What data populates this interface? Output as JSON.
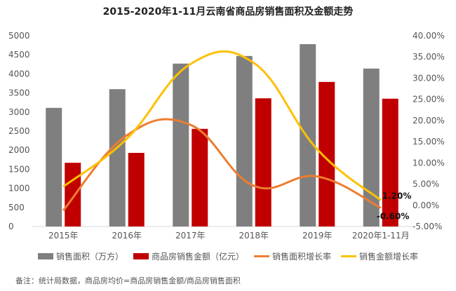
{
  "chart_data": {
    "type": "bar",
    "title": "2015-2020年1-11月云南省商品房销售面积及金额走势",
    "categories": [
      "2015年",
      "2016年",
      "2017年",
      "2018年",
      "2019年",
      "2020年1-11月"
    ],
    "series": [
      {
        "name": "销售面积（万方）",
        "kind": "bar",
        "axis": "left",
        "color": "#7f7f7f",
        "values": [
          3110,
          3600,
          4270,
          4470,
          4780,
          4140
        ]
      },
      {
        "name": "商品房销售金额（亿元）",
        "kind": "bar",
        "axis": "left",
        "color": "#c00000",
        "values": [
          1670,
          1930,
          2560,
          3360,
          3790,
          3350
        ]
      },
      {
        "name": "销售面积增长率",
        "kind": "line",
        "axis": "right",
        "color": "#ed7d31",
        "values": [
          -1.2,
          16.5,
          19.0,
          4.6,
          6.8,
          -0.6
        ]
      },
      {
        "name": "销售金额增长率",
        "kind": "line",
        "axis": "right",
        "color": "#ffc000",
        "values": [
          4.4,
          15.7,
          33.3,
          33.6,
          13.2,
          1.2
        ]
      }
    ],
    "ylim_left": [
      0,
      5000
    ],
    "yticks_left": [
      "0",
      "500",
      "1000",
      "1500",
      "2000",
      "2500",
      "3000",
      "3500",
      "4000",
      "4500",
      "5000"
    ],
    "ylim_right": [
      -5,
      40
    ],
    "yticks_right": [
      "-5.00%",
      "0.00%",
      "5.00%",
      "10.00%",
      "15.00%",
      "20.00%",
      "25.00%",
      "30.00%",
      "35.00%",
      "40.00%"
    ],
    "data_labels": [
      "1.20%",
      "-0.60%"
    ],
    "grid": false,
    "legend": "bottom"
  },
  "note": "备注：统计局数据，商品房均价=商品房销售金额/商品房销售面积"
}
